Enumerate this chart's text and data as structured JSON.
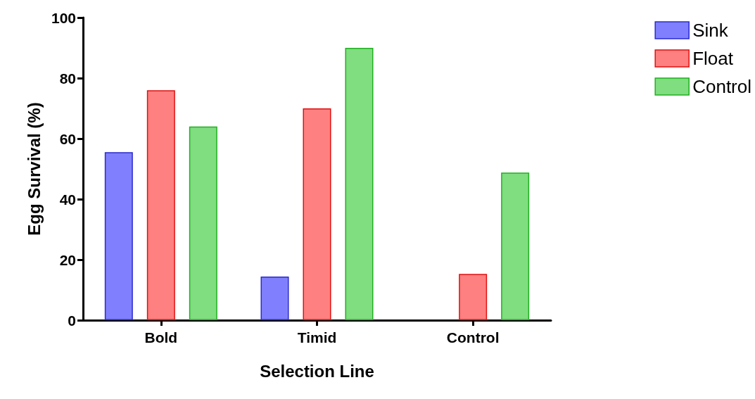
{
  "chart_data": {
    "type": "bar",
    "xlabel": "Selection Line",
    "ylabel": "Egg Survival (%)",
    "categories": [
      "Bold",
      "Timid",
      "Control"
    ],
    "series": [
      {
        "name": "Sink",
        "color": "#8080ff",
        "values": [
          55.5,
          14.4,
          null
        ]
      },
      {
        "name": "Float",
        "color": "#ff8080",
        "values": [
          76,
          70,
          15.3
        ]
      },
      {
        "name": "Control",
        "color": "#80dd80",
        "values": [
          64,
          90,
          48.8
        ]
      }
    ],
    "ylim": [
      0,
      100
    ],
    "yticks": [
      0,
      20,
      40,
      60,
      80,
      100
    ],
    "grid": false,
    "legend": "top right"
  }
}
